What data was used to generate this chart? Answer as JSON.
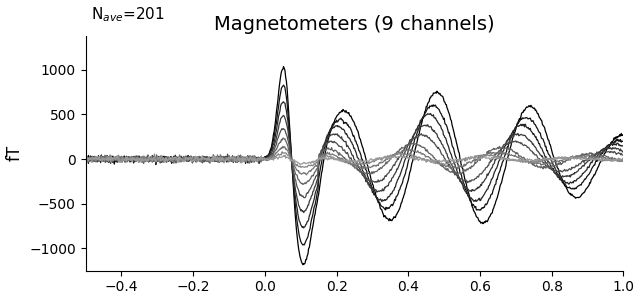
{
  "title": "Magnetometers (9 channels)",
  "nave_text": "N$_{ave}$=201",
  "ylabel": "fT",
  "xlim": [
    -0.5,
    1.0
  ],
  "ylim": [
    -1250,
    1380
  ],
  "n_channels": 9,
  "background_color": "#ffffff",
  "title_fontsize": 14,
  "nave_fontsize": 11,
  "ylabel_fontsize": 12,
  "xticks": [
    -0.4,
    -0.2,
    0.0,
    0.2,
    0.4,
    0.6,
    0.8,
    1.0
  ],
  "yticks": [
    -1000,
    -500,
    0,
    500,
    1000
  ],
  "tmin": -0.5,
  "tmax": 1.0,
  "n_times": 751
}
